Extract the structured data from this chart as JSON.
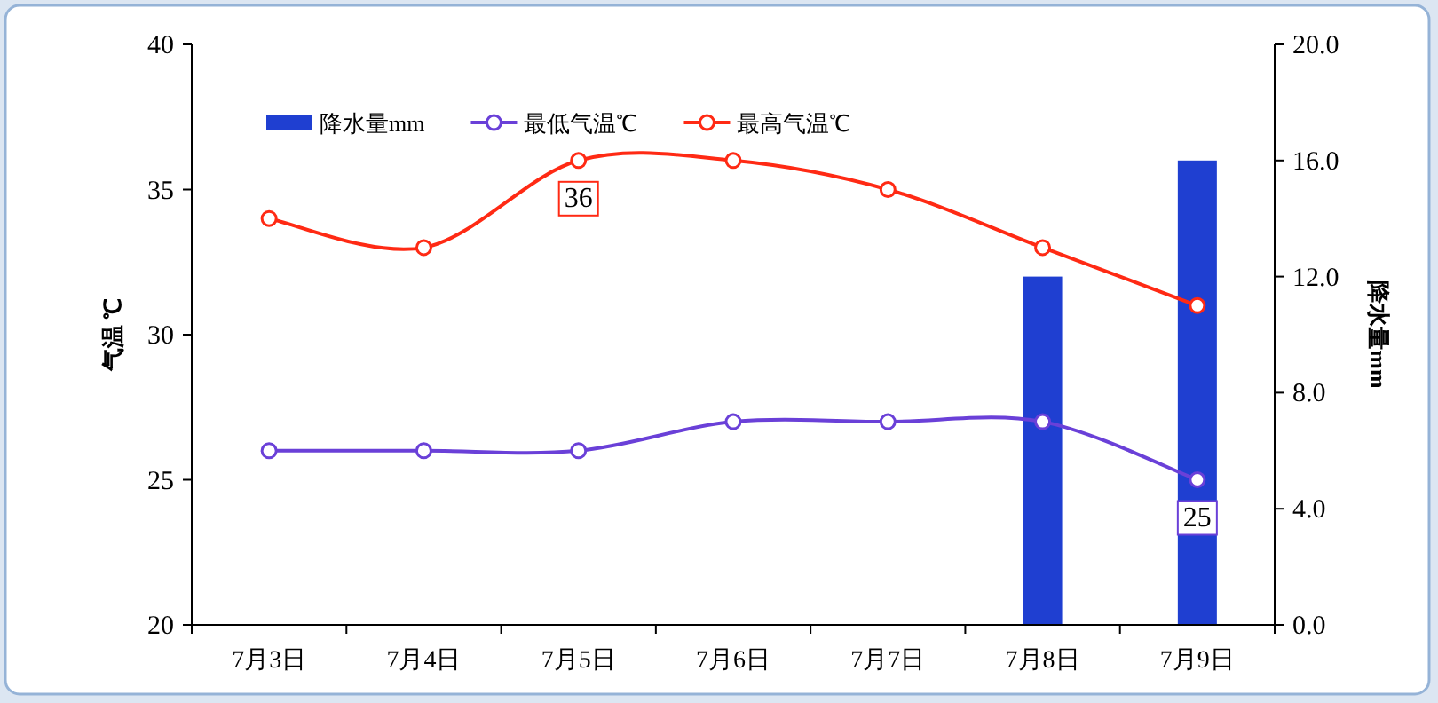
{
  "chart_data": {
    "type": "line",
    "categories": [
      "7月3日",
      "7月4日",
      "7月5日",
      "7月6日",
      "7月7日",
      "7月8日",
      "7月9日"
    ],
    "ylabel": "气温 ℃",
    "y2label": "降水量mm",
    "ylim": [
      20,
      40
    ],
    "yticks": [
      20,
      25,
      30,
      35,
      40
    ],
    "y2lim": [
      0,
      20
    ],
    "y2ticks": [
      {
        "value": 0,
        "label": "0.0"
      },
      {
        "value": 4,
        "label": "4.0"
      },
      {
        "value": 8,
        "label": "8.0"
      },
      {
        "value": 12,
        "label": "12.0"
      },
      {
        "value": 16,
        "label": "16.0"
      },
      {
        "value": 20,
        "label": "20.0"
      }
    ],
    "legend": "top left",
    "marker": "circle",
    "line_style": "solid",
    "series": [
      {
        "name": "降水量mm",
        "type": "bar",
        "axis": "y2",
        "color": "#1f3fd1",
        "values": [
          0,
          0,
          0,
          0,
          0,
          12,
          16
        ]
      },
      {
        "name": "最低气温℃",
        "color": "#6a40d8",
        "values": [
          26,
          26,
          26,
          27,
          27,
          27,
          25
        ],
        "value_labels": [
          null,
          null,
          null,
          null,
          null,
          null,
          "25"
        ]
      },
      {
        "name": "最高气温℃",
        "color": "#ff2a14",
        "values": [
          34,
          33,
          36,
          36,
          35,
          33,
          31
        ],
        "value_labels": [
          null,
          null,
          "36",
          null,
          null,
          null,
          null
        ]
      }
    ]
  }
}
